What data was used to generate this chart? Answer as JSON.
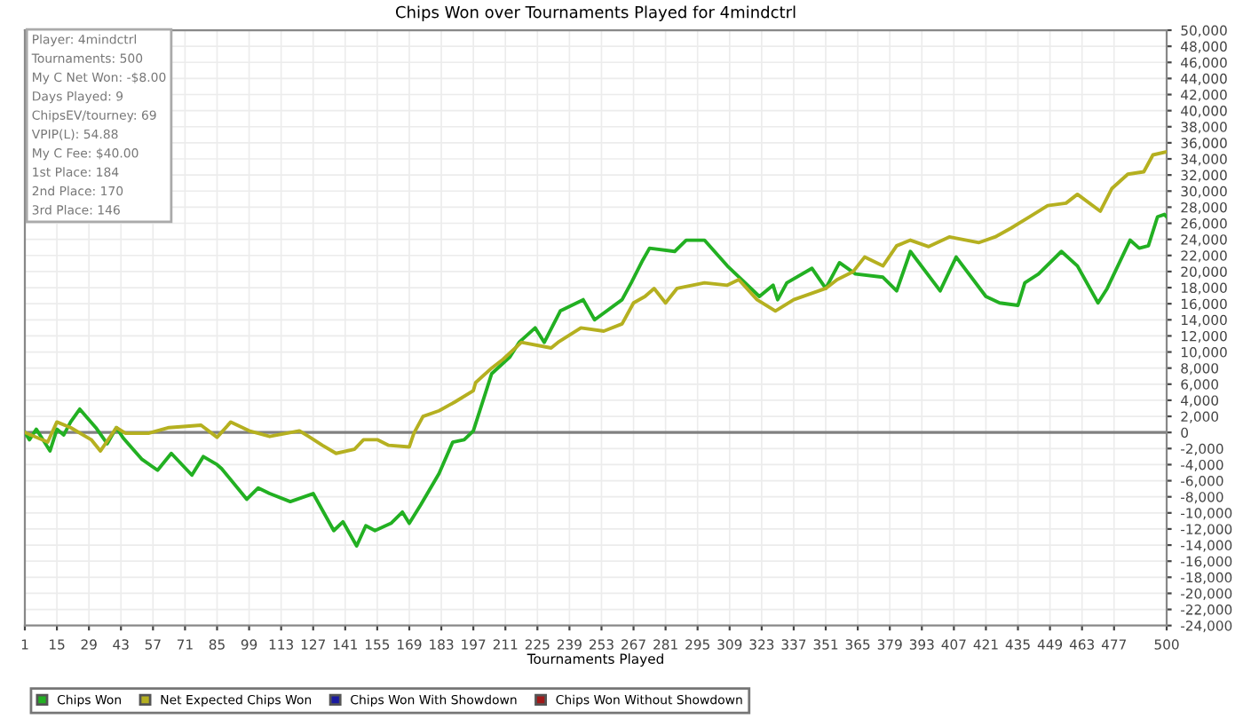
{
  "chart_data": {
    "type": "line",
    "title": "Chips Won over Tournaments Played for 4mindctrl",
    "xlabel": "Tournaments Played",
    "annotations": [
      "Player: 4mindctrl",
      "Tournaments: 500",
      "My C Net Won: -$8.00",
      "Days Played: 9",
      "ChipsEV/tourney: 69",
      "VPIP(L): 54.88",
      "My C Fee: $40.00",
      "1st Place: 184",
      "2nd Place: 170",
      "3rd Place: 146"
    ],
    "series": [
      {
        "name": "Chips Won",
        "color": "#22b022",
        "x": [
          1,
          3,
          6,
          12,
          15,
          18,
          21,
          25,
          32,
          37,
          41,
          44,
          52,
          59,
          65,
          74,
          79,
          85,
          87,
          98,
          103,
          108,
          117,
          127,
          136,
          140,
          146,
          150,
          154,
          161,
          166,
          169,
          174,
          182,
          188,
          193,
          197,
          205,
          213,
          217,
          224,
          228,
          235,
          245,
          250,
          262,
          266,
          271,
          274,
          285,
          290,
          298,
          308,
          322,
          328,
          330,
          334,
          345,
          351,
          357,
          364,
          376,
          382,
          388,
          401,
          408,
          421,
          427,
          435,
          438,
          444,
          454,
          461,
          470,
          474,
          484,
          488,
          492,
          496,
          499,
          500
        ],
        "values": [
          0,
          -900,
          400,
          -2300,
          400,
          -300,
          1300,
          2900,
          600,
          -1400,
          600,
          -700,
          -3300,
          -4700,
          -2600,
          -5300,
          -3000,
          -4000,
          -4500,
          -8300,
          -6900,
          -7600,
          -8600,
          -7600,
          -12200,
          -11100,
          -14100,
          -11600,
          -12200,
          -11300,
          -9900,
          -11300,
          -9000,
          -5100,
          -1200,
          -900,
          200,
          7300,
          9400,
          11200,
          13000,
          11200,
          15100,
          16500,
          14000,
          16500,
          18600,
          21400,
          22900,
          22500,
          23900,
          23900,
          20700,
          16900,
          18300,
          16500,
          18600,
          20400,
          17900,
          21100,
          19700,
          19300,
          17600,
          22500,
          17600,
          21800,
          16900,
          16100,
          15800,
          18600,
          19700,
          22500,
          20700,
          16100,
          17900,
          23900,
          22900,
          23200,
          26800,
          27100,
          26800
        ]
      },
      {
        "name": "Net Expected Chips Won",
        "color": "#b5b020",
        "x": [
          1,
          11,
          15,
          21,
          30,
          34,
          41,
          45,
          55,
          64,
          78,
          85,
          91,
          99,
          108,
          121,
          125,
          131,
          137,
          145,
          149,
          155,
          160,
          169,
          171,
          175,
          182,
          189,
          197,
          198,
          205,
          210,
          218,
          231,
          234,
          244,
          254,
          262,
          267,
          272,
          276,
          281,
          286,
          298,
          308,
          313,
          321,
          329,
          337,
          351,
          356,
          363,
          368,
          376,
          382,
          388,
          396,
          405,
          418,
          425,
          432,
          440,
          448,
          456,
          461,
          471,
          476,
          483,
          490,
          494,
          500
        ],
        "values": [
          0,
          -1200,
          1300,
          600,
          -900,
          -2300,
          600,
          -100,
          -100,
          600,
          900,
          -600,
          1300,
          200,
          -500,
          200,
          -500,
          -1600,
          -2600,
          -2100,
          -900,
          -900,
          -1600,
          -1800,
          -100,
          2000,
          2700,
          3800,
          5200,
          6200,
          8000,
          9100,
          11200,
          10500,
          11200,
          13000,
          12600,
          13500,
          16100,
          16900,
          17900,
          16100,
          17900,
          18600,
          18300,
          19000,
          16500,
          15100,
          16500,
          17900,
          19000,
          20000,
          21800,
          20700,
          23200,
          23900,
          23100,
          24300,
          23600,
          24300,
          25400,
          26800,
          28200,
          28500,
          29600,
          27500,
          30300,
          32100,
          32400,
          34500,
          34900
        ]
      },
      {
        "name": "Chips Won With Showdown",
        "color": "#1a1aa0"
      },
      {
        "name": "Chips Won Without Showdown",
        "color": "#a01a1a"
      }
    ],
    "xlim": [
      1,
      500
    ],
    "xticks": [
      1,
      15,
      29,
      43,
      57,
      71,
      85,
      99,
      113,
      127,
      141,
      155,
      169,
      183,
      197,
      211,
      225,
      239,
      253,
      267,
      281,
      295,
      309,
      323,
      337,
      351,
      365,
      379,
      393,
      407,
      421,
      435,
      449,
      463,
      477,
      500
    ],
    "ylim": [
      -24000,
      50000
    ],
    "yticks": [
      {
        "value": -24000,
        "label": "-24,000"
      },
      {
        "value": -22000,
        "label": "-22,000"
      },
      {
        "value": -20000,
        "label": "-20,000"
      },
      {
        "value": -18000,
        "label": "-18,000"
      },
      {
        "value": -16000,
        "label": "-16,000"
      },
      {
        "value": -14000,
        "label": "-14,000"
      },
      {
        "value": -12000,
        "label": "-12,000"
      },
      {
        "value": -10000,
        "label": "-10,000"
      },
      {
        "value": -8000,
        "label": "-8,000"
      },
      {
        "value": -6000,
        "label": "-6,000"
      },
      {
        "value": -4000,
        "label": "-4,000"
      },
      {
        "value": -2000,
        "label": "-2,000"
      },
      0,
      {
        "value": 2000,
        "label": "2,000"
      },
      {
        "value": 4000,
        "label": "4,000"
      },
      {
        "value": 6000,
        "label": "6,000"
      },
      {
        "value": 8000,
        "label": "8,000"
      },
      {
        "value": 10000,
        "label": "10,000"
      },
      {
        "value": 12000,
        "label": "12,000"
      },
      {
        "value": 14000,
        "label": "14,000"
      },
      {
        "value": 16000,
        "label": "16,000"
      },
      {
        "value": 18000,
        "label": "18,000"
      },
      {
        "value": 20000,
        "label": "20,000"
      },
      {
        "value": 22000,
        "label": "22,000"
      },
      {
        "value": 24000,
        "label": "24,000"
      },
      {
        "value": 26000,
        "label": "26,000"
      },
      {
        "value": 28000,
        "label": "28,000"
      },
      {
        "value": 30000,
        "label": "30,000"
      },
      {
        "value": 32000,
        "label": "32,000"
      },
      {
        "value": 34000,
        "label": "34,000"
      },
      {
        "value": 36000,
        "label": "36,000"
      },
      {
        "value": 38000,
        "label": "38,000"
      },
      {
        "value": 40000,
        "label": "40,000"
      },
      {
        "value": 42000,
        "label": "42,000"
      },
      {
        "value": 44000,
        "label": "44,000"
      },
      {
        "value": 46000,
        "label": "46,000"
      },
      {
        "value": 48000,
        "label": "48,000"
      },
      {
        "value": 50000,
        "label": "50,000"
      }
    ],
    "ref_lines": [
      {
        "axis": "y",
        "value": 0,
        "color": "#808080"
      }
    ],
    "grid": true,
    "legend": "bottom",
    "marker": "none",
    "line_style": "solid"
  }
}
